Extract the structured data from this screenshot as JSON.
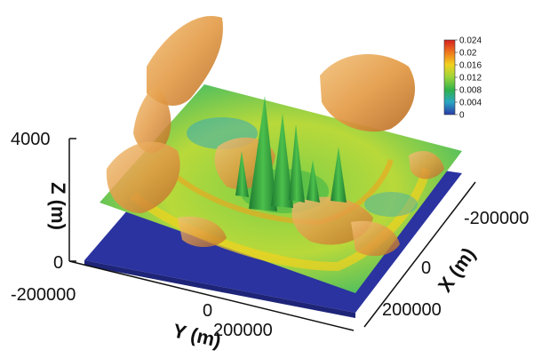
{
  "chart_data": {
    "type": "heatmap",
    "title": "",
    "xlabel": "X (m)",
    "ylabel": "Y (m)",
    "zlabel": "Z (m)",
    "x_ticks": [
      "-200000",
      "0",
      "200000"
    ],
    "y_ticks": [
      "-200000",
      "0",
      "200000"
    ],
    "z_ticks": [
      "4000",
      "0"
    ],
    "xlim": [
      -300000,
      300000
    ],
    "ylim": [
      -300000,
      300000
    ],
    "zlim": [
      0,
      4000
    ],
    "colorbar": {
      "ticks": [
        "0.024",
        "0.02",
        "0.016",
        "0.012",
        "0.008",
        "0.004",
        "0"
      ],
      "values": [
        0.024,
        0.02,
        0.016,
        0.012,
        0.008,
        0.004,
        0
      ],
      "colors": [
        "#d62020",
        "#f07a1e",
        "#f2d21e",
        "#9bd43a",
        "#2fb24a",
        "#2aa7c2",
        "#2a3aa8"
      ],
      "range": [
        0,
        0.024
      ]
    },
    "isosurface_color": "#e9a24a",
    "lower_plane_color": "#2b33a0"
  }
}
